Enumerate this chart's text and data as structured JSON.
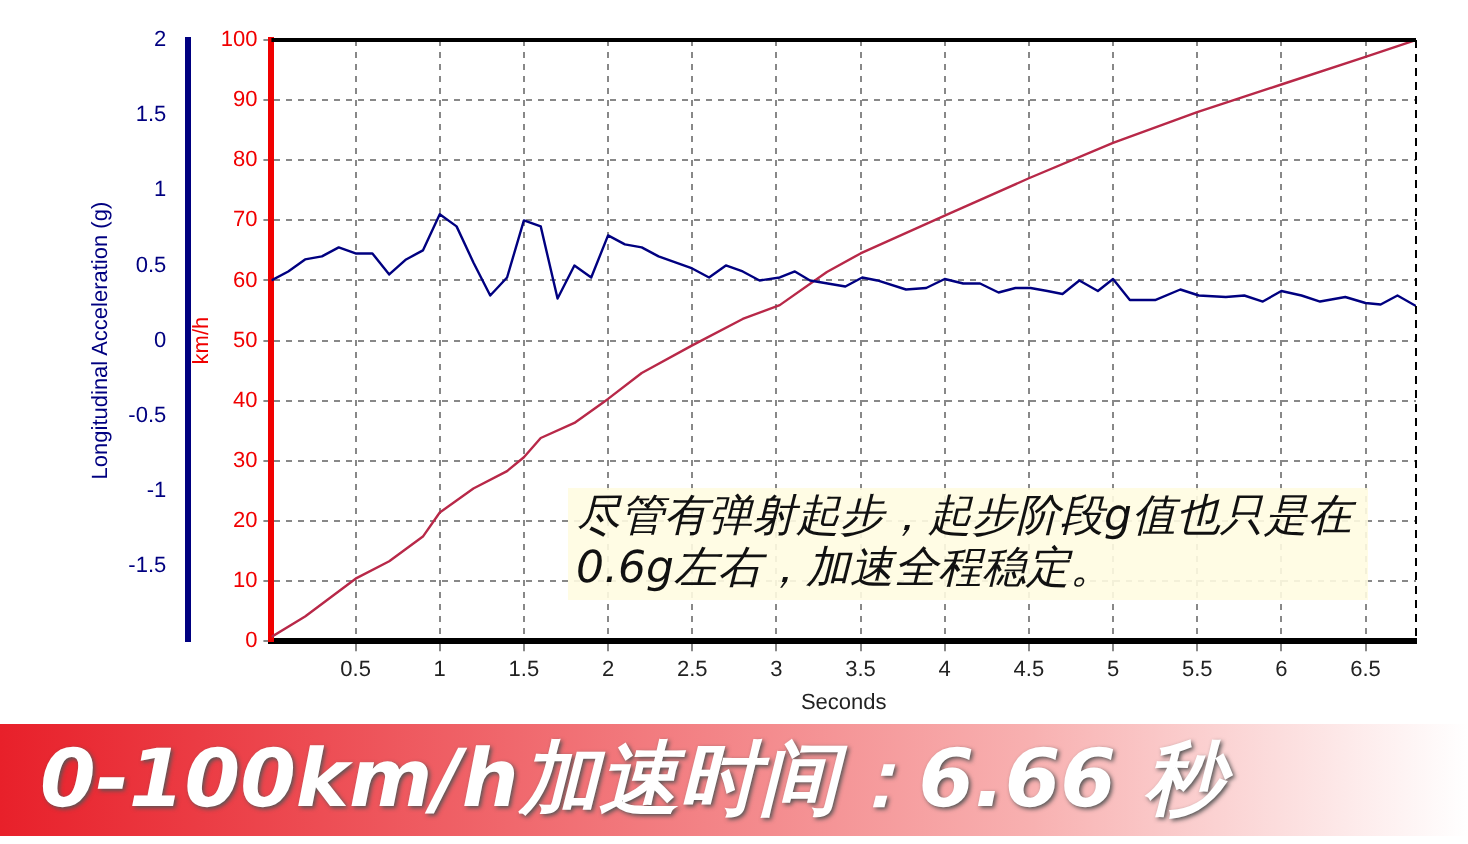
{
  "chart_data": {
    "type": "line",
    "xlabel": "Seconds",
    "ylabel": "Longitudinal Acceleration (g)",
    "y2label": "km/h",
    "xlim": [
      0,
      6.8
    ],
    "xticks": [
      0.5,
      1,
      1.5,
      2,
      2.5,
      3,
      3.5,
      4,
      4.5,
      5,
      5.5,
      6,
      6.5
    ],
    "ylim": [
      -2,
      2
    ],
    "yticks": [
      -1.5,
      -1,
      -0.5,
      0,
      0.5,
      1,
      1.5,
      2
    ],
    "y2lim": [
      0,
      100
    ],
    "y2ticks": [
      0,
      10,
      20,
      30,
      40,
      50,
      60,
      70,
      80,
      90,
      100
    ],
    "grid": true,
    "legend": false,
    "marker": "none",
    "line_style": "solid",
    "series": [
      {
        "color": "#000080",
        "x": [
          0,
          0.1,
          0.2,
          0.3,
          0.4,
          0.5,
          0.6,
          0.7,
          0.8,
          0.9,
          1.0,
          1.1,
          1.2,
          1.3,
          1.4,
          1.5,
          1.6,
          1.7,
          1.8,
          1.9,
          2.0,
          2.1,
          2.2,
          2.3,
          2.4,
          2.5,
          2.6,
          2.7,
          2.8,
          2.9,
          3.02,
          3.11,
          3.2,
          3.41,
          3.51,
          3.6,
          3.77,
          3.89,
          4.0,
          4.11,
          4.21,
          4.32,
          4.42,
          4.51,
          4.61,
          4.7,
          4.8,
          4.91,
          5.0,
          5.1,
          5.25,
          5.4,
          5.51,
          5.67,
          5.78,
          5.89,
          6.0,
          6.12,
          6.23,
          6.38,
          6.5,
          6.59,
          6.69,
          6.8
        ],
        "values": [
          0.4,
          0.46,
          0.54,
          0.56,
          0.62,
          0.58,
          0.58,
          0.44,
          0.54,
          0.6,
          0.84,
          0.76,
          0.52,
          0.3,
          0.42,
          0.8,
          0.76,
          0.28,
          0.5,
          0.42,
          0.7,
          0.64,
          0.62,
          0.56,
          0.52,
          0.48,
          0.42,
          0.5,
          0.46,
          0.4,
          0.42,
          0.46,
          0.4,
          0.36,
          0.42,
          0.4,
          0.34,
          0.35,
          0.41,
          0.38,
          0.38,
          0.32,
          0.35,
          0.35,
          0.33,
          0.31,
          0.4,
          0.33,
          0.41,
          0.27,
          0.27,
          0.34,
          0.3,
          0.29,
          0.3,
          0.26,
          0.33,
          0.3,
          0.26,
          0.29,
          0.25,
          0.24,
          0.3,
          0.23
        ]
      },
      {
        "color": "#b82848",
        "axis": "y2",
        "x": [
          0,
          0.2,
          0.5,
          0.7,
          0.9,
          1.0,
          1.2,
          1.4,
          1.5,
          1.6,
          1.8,
          2.0,
          2.2,
          2.5,
          2.8,
          3.02,
          3.3,
          3.5,
          4.0,
          4.5,
          5.0,
          5.5,
          6.0,
          6.5,
          6.8
        ],
        "values": [
          0.7,
          4.1,
          10.4,
          13.3,
          17.4,
          21.4,
          25.4,
          28.3,
          30.6,
          33.8,
          36.3,
          40.3,
          44.6,
          49.2,
          53.6,
          55.9,
          61.4,
          64.5,
          70.8,
          77.0,
          82.9,
          88.0,
          92.6,
          97.2,
          100
        ]
      }
    ],
    "annotations": [
      "尽管有弹射起步，起步阶段g值也只是在0.6g左右，加速全程稳定。",
      "0-100km/h加速时间：6.66 秒"
    ]
  }
}
